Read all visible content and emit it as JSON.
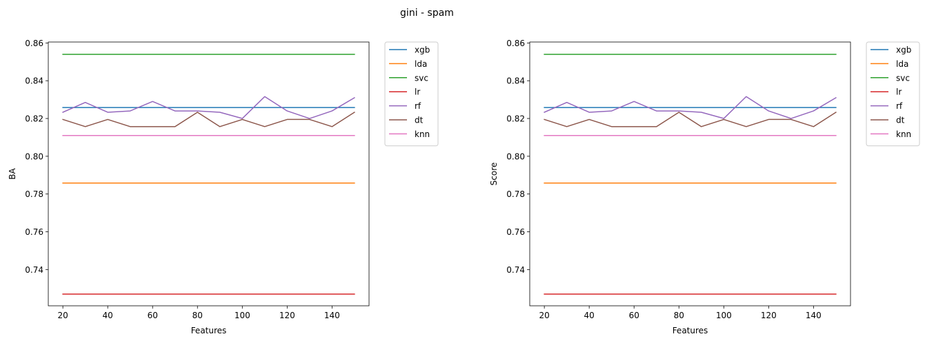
{
  "figure": {
    "title": "gini - spam"
  },
  "chart_data": [
    {
      "type": "line",
      "title": "",
      "xlabel": "Features",
      "ylabel": "BA",
      "xlim": [
        13.5,
        156.5
      ],
      "ylim": [
        0.7208,
        0.8605
      ],
      "xticks": [
        20,
        40,
        60,
        80,
        100,
        120,
        140
      ],
      "yticks": [
        0.74,
        0.76,
        0.78,
        0.8,
        0.82,
        0.84,
        0.86
      ],
      "grid": false,
      "legend": "outside-top-right",
      "x": [
        20,
        30,
        40,
        50,
        60,
        70,
        80,
        90,
        100,
        110,
        120,
        130,
        140,
        150
      ],
      "series": [
        {
          "name": "xgb",
          "color": "#1f77b4",
          "values": [
            0.8258,
            0.8258,
            0.8258,
            0.8258,
            0.8258,
            0.8258,
            0.8258,
            0.8258,
            0.8258,
            0.8258,
            0.8258,
            0.8258,
            0.8258,
            0.8258
          ]
        },
        {
          "name": "lda",
          "color": "#ff7f0e",
          "values": [
            0.7858,
            0.7858,
            0.7858,
            0.7858,
            0.7858,
            0.7858,
            0.7858,
            0.7858,
            0.7858,
            0.7858,
            0.7858,
            0.7858,
            0.7858,
            0.7858
          ]
        },
        {
          "name": "svc",
          "color": "#2ca02c",
          "values": [
            0.854,
            0.854,
            0.854,
            0.854,
            0.854,
            0.854,
            0.854,
            0.854,
            0.854,
            0.854,
            0.854,
            0.854,
            0.854,
            0.854
          ]
        },
        {
          "name": "lr",
          "color": "#d62728",
          "values": [
            0.727,
            0.727,
            0.727,
            0.727,
            0.727,
            0.727,
            0.727,
            0.727,
            0.727,
            0.727,
            0.727,
            0.727,
            0.727,
            0.727
          ]
        },
        {
          "name": "rf",
          "color": "#9467bd",
          "values": [
            0.8233,
            0.8285,
            0.8233,
            0.824,
            0.829,
            0.824,
            0.824,
            0.8233,
            0.82,
            0.8316,
            0.824,
            0.82,
            0.824,
            0.831
          ]
        },
        {
          "name": "dt",
          "color": "#8c564b",
          "values": [
            0.8195,
            0.8157,
            0.8195,
            0.8157,
            0.8157,
            0.8157,
            0.8233,
            0.8157,
            0.8195,
            0.8157,
            0.8195,
            0.8195,
            0.8157,
            0.8233
          ]
        },
        {
          "name": "knn",
          "color": "#e377c2",
          "values": [
            0.811,
            0.811,
            0.811,
            0.811,
            0.811,
            0.811,
            0.811,
            0.811,
            0.811,
            0.811,
            0.811,
            0.811,
            0.811,
            0.811
          ]
        }
      ]
    },
    {
      "type": "line",
      "title": "",
      "xlabel": "Features",
      "ylabel": "Score",
      "xlim": [
        13.5,
        156.5
      ],
      "ylim": [
        0.7208,
        0.8605
      ],
      "xticks": [
        20,
        40,
        60,
        80,
        100,
        120,
        140
      ],
      "yticks": [
        0.74,
        0.76,
        0.78,
        0.8,
        0.82,
        0.84,
        0.86
      ],
      "grid": false,
      "legend": "outside-top-right",
      "x": [
        20,
        30,
        40,
        50,
        60,
        70,
        80,
        90,
        100,
        110,
        120,
        130,
        140,
        150
      ],
      "series": [
        {
          "name": "xgb",
          "color": "#1f77b4",
          "values": [
            0.8258,
            0.8258,
            0.8258,
            0.8258,
            0.8258,
            0.8258,
            0.8258,
            0.8258,
            0.8258,
            0.8258,
            0.8258,
            0.8258,
            0.8258,
            0.8258
          ]
        },
        {
          "name": "lda",
          "color": "#ff7f0e",
          "values": [
            0.7858,
            0.7858,
            0.7858,
            0.7858,
            0.7858,
            0.7858,
            0.7858,
            0.7858,
            0.7858,
            0.7858,
            0.7858,
            0.7858,
            0.7858,
            0.7858
          ]
        },
        {
          "name": "svc",
          "color": "#2ca02c",
          "values": [
            0.854,
            0.854,
            0.854,
            0.854,
            0.854,
            0.854,
            0.854,
            0.854,
            0.854,
            0.854,
            0.854,
            0.854,
            0.854,
            0.854
          ]
        },
        {
          "name": "lr",
          "color": "#d62728",
          "values": [
            0.727,
            0.727,
            0.727,
            0.727,
            0.727,
            0.727,
            0.727,
            0.727,
            0.727,
            0.727,
            0.727,
            0.727,
            0.727,
            0.727
          ]
        },
        {
          "name": "rf",
          "color": "#9467bd",
          "values": [
            0.8233,
            0.8285,
            0.8233,
            0.824,
            0.829,
            0.824,
            0.824,
            0.8233,
            0.82,
            0.8316,
            0.824,
            0.82,
            0.824,
            0.831
          ]
        },
        {
          "name": "dt",
          "color": "#8c564b",
          "values": [
            0.8195,
            0.8157,
            0.8195,
            0.8157,
            0.8157,
            0.8157,
            0.8233,
            0.8157,
            0.8195,
            0.8157,
            0.8195,
            0.8195,
            0.8157,
            0.8233
          ]
        },
        {
          "name": "knn",
          "color": "#e377c2",
          "values": [
            0.811,
            0.811,
            0.811,
            0.811,
            0.811,
            0.811,
            0.811,
            0.811,
            0.811,
            0.811,
            0.811,
            0.811,
            0.811,
            0.811
          ]
        }
      ]
    }
  ]
}
